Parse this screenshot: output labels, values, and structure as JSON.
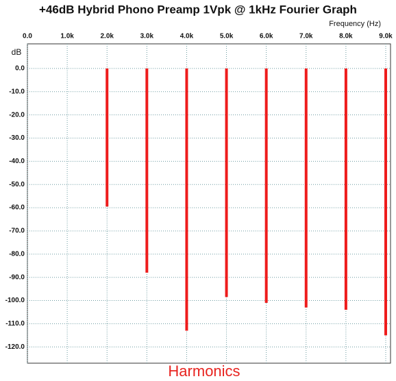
{
  "chart_data": {
    "type": "bar",
    "title": "+46dB Hybrid Phono Preamp 1Vpk @ 1kHz Fourier Graph",
    "x_label": "Frequency (Hz)",
    "y_label": "dB",
    "caption": "Harmonics",
    "x": [
      2000,
      3000,
      4000,
      5000,
      6000,
      7000,
      8000,
      9000
    ],
    "values": [
      -59.5,
      -88,
      -113,
      -98.5,
      -101,
      -103,
      -104,
      -115
    ],
    "color": "#ee1c1c",
    "caption_color": "#e8231f",
    "xlim": [
      0,
      9000
    ],
    "ylim": [
      -127,
      10.6
    ],
    "xticks": [
      {
        "value": 0,
        "label": "0.0"
      },
      {
        "value": 1000,
        "label": "1.0k"
      },
      {
        "value": 2000,
        "label": "2.0k"
      },
      {
        "value": 3000,
        "label": "3.0k"
      },
      {
        "value": 4000,
        "label": "4.0k"
      },
      {
        "value": 5000,
        "label": "5.0k"
      },
      {
        "value": 6000,
        "label": "6.0k"
      },
      {
        "value": 7000,
        "label": "7.0k"
      },
      {
        "value": 8000,
        "label": "8.0k"
      },
      {
        "value": 9000,
        "label": "9.0k"
      }
    ],
    "yticks": [
      {
        "value": 0,
        "label": "0.0"
      },
      {
        "value": -10,
        "label": "-10.0"
      },
      {
        "value": -20,
        "label": "-20.0"
      },
      {
        "value": -30,
        "label": "-30.0"
      },
      {
        "value": -40,
        "label": "-40.0"
      },
      {
        "value": -50,
        "label": "-50.0"
      },
      {
        "value": -60,
        "label": "-60.0"
      },
      {
        "value": -70,
        "label": "-70.0"
      },
      {
        "value": -80,
        "label": "-80.0"
      },
      {
        "value": -90,
        "label": "-90.0"
      },
      {
        "value": -100,
        "label": "-100.0"
      },
      {
        "value": -110,
        "label": "-110.0"
      },
      {
        "value": -120,
        "label": "-120.0"
      }
    ],
    "grid": true
  }
}
